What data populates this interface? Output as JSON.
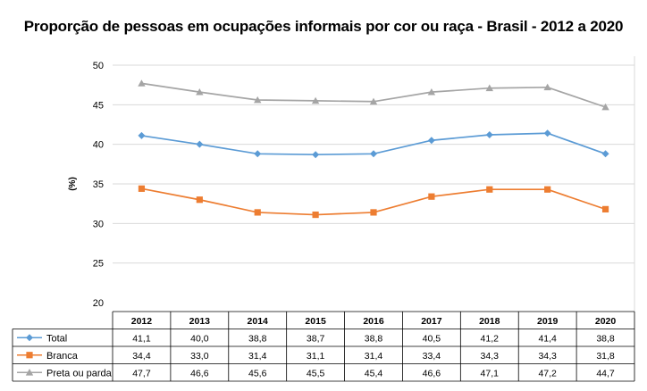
{
  "chart_data": {
    "type": "line",
    "title": "Proporção de pessoas em ocupações informais por cor ou raça - Brasil - 2012 a 2020",
    "ylabel": "(%)",
    "xlabel": "",
    "ylim": [
      20,
      50
    ],
    "yticks": [
      "20",
      "25",
      "30",
      "35",
      "40",
      "45",
      "50"
    ],
    "grid": true,
    "legend": "data-table-below",
    "categories": [
      "2012",
      "2013",
      "2014",
      "2015",
      "2016",
      "2017",
      "2018",
      "2019",
      "2020"
    ],
    "series": [
      {
        "name": "Total",
        "color": "#5b9bd5",
        "marker": "diamond",
        "values": [
          41.1,
          40.0,
          38.8,
          38.7,
          38.8,
          40.5,
          41.2,
          41.4,
          38.8
        ],
        "labels": [
          "41,1",
          "40,0",
          "38,8",
          "38,7",
          "38,8",
          "40,5",
          "41,2",
          "41,4",
          "38,8"
        ]
      },
      {
        "name": "Branca",
        "color": "#ed7d31",
        "marker": "square",
        "values": [
          34.4,
          33.0,
          31.4,
          31.1,
          31.4,
          33.4,
          34.3,
          34.3,
          31.8
        ],
        "labels": [
          "34,4",
          "33,0",
          "31,4",
          "31,1",
          "31,4",
          "33,4",
          "34,3",
          "34,3",
          "31,8"
        ]
      },
      {
        "name": "Preta ou parda",
        "color": "#a5a5a5",
        "marker": "triangle",
        "values": [
          47.7,
          46.6,
          45.6,
          45.5,
          45.4,
          46.6,
          47.1,
          47.2,
          44.7
        ],
        "labels": [
          "47,7",
          "46,6",
          "45,6",
          "45,5",
          "45,4",
          "46,6",
          "47,1",
          "47,2",
          "44,7"
        ]
      }
    ]
  }
}
